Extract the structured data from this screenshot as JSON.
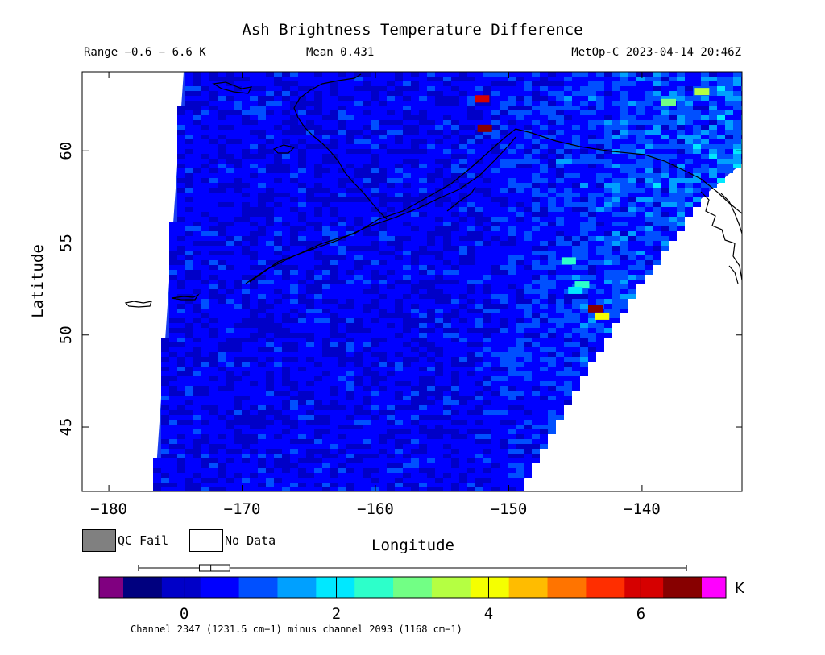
{
  "header": {
    "title": "Ash Brightness Temperature Difference",
    "range": "Range −0.6 − 6.6 K",
    "mean": "Mean 0.431",
    "satellite_time": "MetOp-C 2023-04-14 20:46Z"
  },
  "legend": {
    "qc_fail": "QC Fail",
    "no_data": "No Data",
    "qc_fail_color": "#808080",
    "no_data_color": "#ffffff"
  },
  "chart_data": {
    "type": "heatmap",
    "title": "Ash Brightness Temperature Difference",
    "xlabel": "Longitude",
    "ylabel": "Latitude",
    "xlim": [
      -182,
      -132.5
    ],
    "ylim": [
      41.5,
      64.3
    ],
    "x_ticks": [
      -180,
      -170,
      -160,
      -150,
      -140
    ],
    "x_tick_labels": [
      "−180",
      "−170",
      "−160",
      "−150",
      "−140"
    ],
    "y_ticks": [
      45,
      50,
      55,
      60
    ],
    "y_tick_labels": [
      "45",
      "50",
      "55",
      "60"
    ],
    "value_range_K": [
      -0.6,
      6.6
    ],
    "mean_K": 0.431,
    "background_level_K": 0.4,
    "hotspots": [
      {
        "lon": -143.5,
        "lat": 51.4,
        "value_K": 6.4
      },
      {
        "lon": -143.0,
        "lat": 51.0,
        "value_K": 4.2
      },
      {
        "lon": -144.5,
        "lat": 52.7,
        "value_K": 2.6
      },
      {
        "lon": -145.0,
        "lat": 52.4,
        "value_K": 2.2
      },
      {
        "lon": -145.5,
        "lat": 54.0,
        "value_K": 2.4
      },
      {
        "lon": -138.0,
        "lat": 62.6,
        "value_K": 3.0
      },
      {
        "lon": -135.5,
        "lat": 63.2,
        "value_K": 3.3
      },
      {
        "lon": -151.8,
        "lat": 61.2,
        "value_K": 6.3
      },
      {
        "lon": -152.0,
        "lat": 62.8,
        "value_K": 6.2
      }
    ],
    "colorbar": {
      "unit": "K",
      "min": -0.8,
      "max": 6.8,
      "ticks": [
        0,
        2,
        4,
        6
      ],
      "tick_labels": [
        "0",
        "2",
        "4",
        "6"
      ],
      "below_color": "#800080",
      "above_color": "#ff00ff",
      "colors": [
        "#00007f",
        "#0000c8",
        "#0000ff",
        "#0050ff",
        "#00a0ff",
        "#00e8ff",
        "#2dffca",
        "#72ff85",
        "#b5ff42",
        "#f5ff00",
        "#ffbc00",
        "#ff7400",
        "#ff2e00",
        "#d60000",
        "#870000"
      ],
      "box_median_K": 0.35,
      "box_q1_K": 0.2,
      "box_q3_K": 0.6,
      "whisker_min_K": -0.6,
      "whisker_max_K": 6.6
    },
    "channel_note": "Channel 2347 (1231.5 cm−1) minus channel 2093 (1168 cm−1)"
  }
}
